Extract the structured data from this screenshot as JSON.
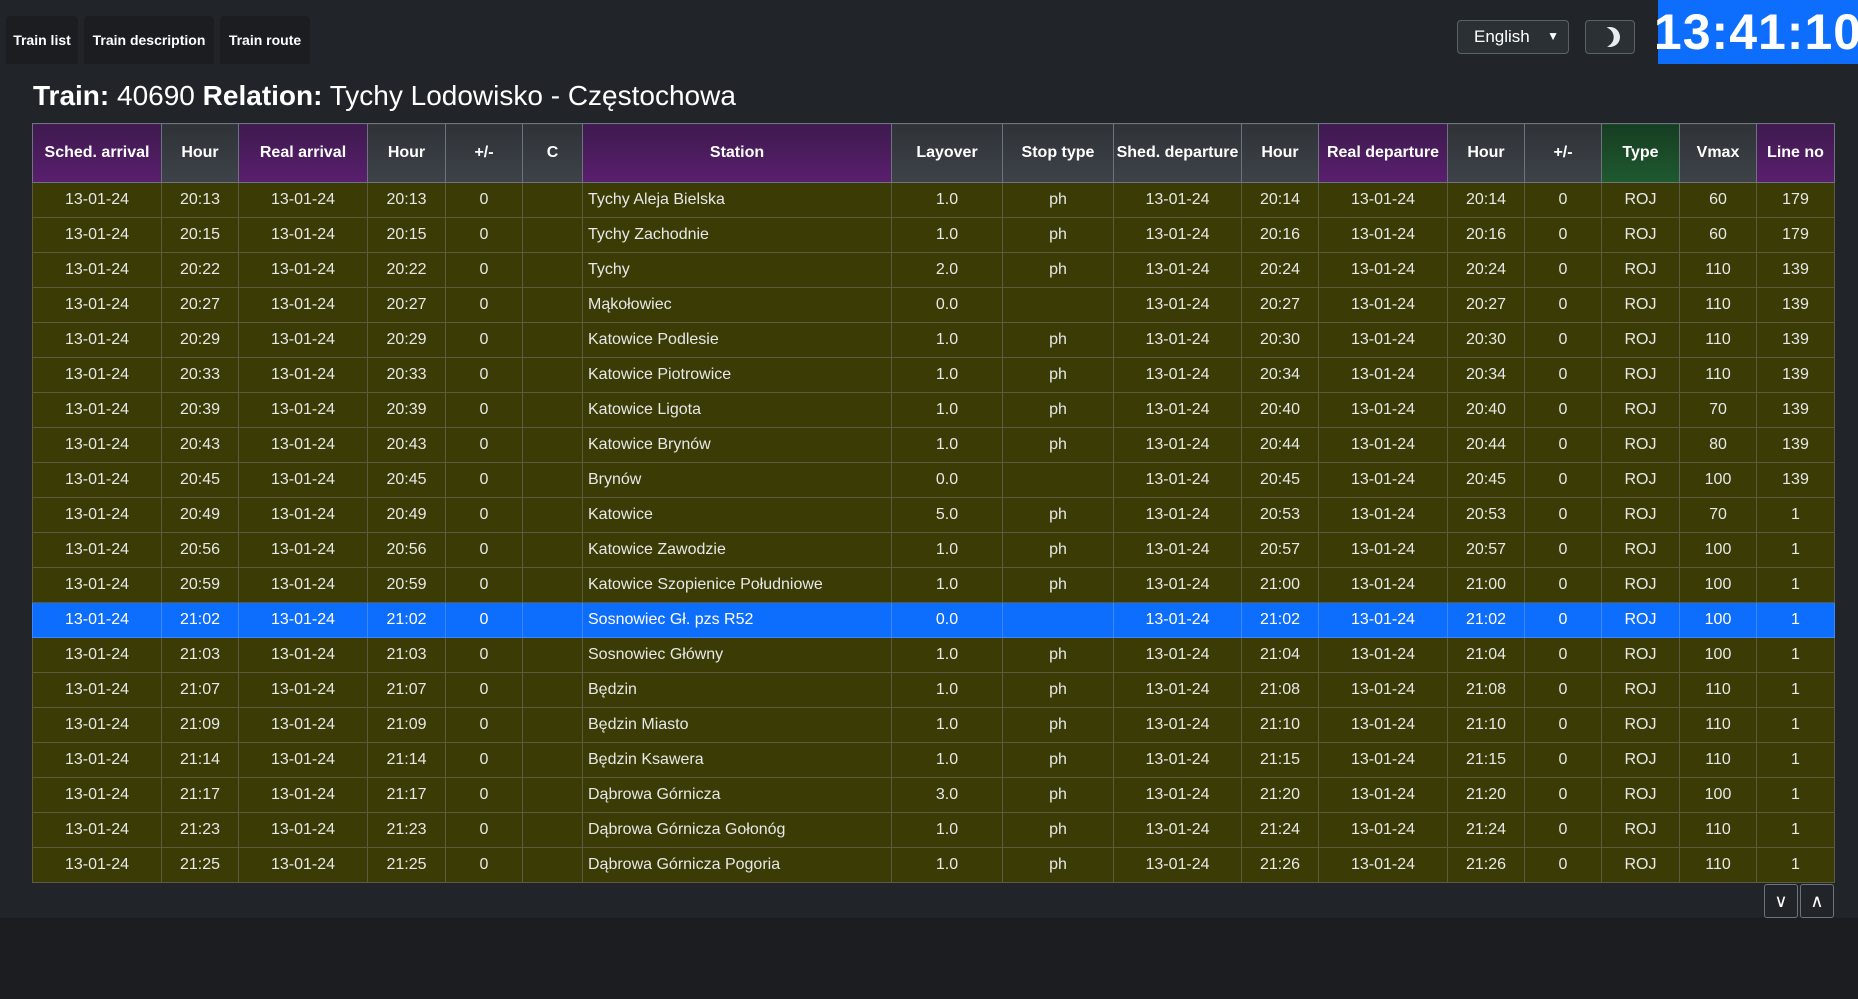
{
  "tabs": [
    "Train list",
    "Train description",
    "Train route"
  ],
  "language": {
    "selected": "English"
  },
  "theme_icon": "moon-icon",
  "clock": "13:41:10",
  "title": {
    "train_label": "Train:",
    "train_no": "40690",
    "relation_label": "Relation:",
    "relation": "Tychy Lodowisko - Częstochowa"
  },
  "columns": [
    "Sched. arrival",
    "Hour",
    "Real arrival",
    "Hour",
    "+/-",
    "C",
    "Station",
    "Layover",
    "Stop type",
    "Shed. departure",
    "Hour",
    "Real departure",
    "Hour",
    "+/-",
    "Type",
    "Vmax",
    "Line no"
  ],
  "rows": [
    [
      "13-01-24",
      "20:13",
      "13-01-24",
      "20:13",
      "0",
      "",
      "Tychy Aleja Bielska",
      "1.0",
      "ph",
      "13-01-24",
      "20:14",
      "13-01-24",
      "20:14",
      "0",
      "ROJ",
      "60",
      "179"
    ],
    [
      "13-01-24",
      "20:15",
      "13-01-24",
      "20:15",
      "0",
      "",
      "Tychy Zachodnie",
      "1.0",
      "ph",
      "13-01-24",
      "20:16",
      "13-01-24",
      "20:16",
      "0",
      "ROJ",
      "60",
      "179"
    ],
    [
      "13-01-24",
      "20:22",
      "13-01-24",
      "20:22",
      "0",
      "",
      "Tychy",
      "2.0",
      "ph",
      "13-01-24",
      "20:24",
      "13-01-24",
      "20:24",
      "0",
      "ROJ",
      "110",
      "139"
    ],
    [
      "13-01-24",
      "20:27",
      "13-01-24",
      "20:27",
      "0",
      "",
      "Mąkołowiec",
      "0.0",
      "",
      "13-01-24",
      "20:27",
      "13-01-24",
      "20:27",
      "0",
      "ROJ",
      "110",
      "139"
    ],
    [
      "13-01-24",
      "20:29",
      "13-01-24",
      "20:29",
      "0",
      "",
      "Katowice Podlesie",
      "1.0",
      "ph",
      "13-01-24",
      "20:30",
      "13-01-24",
      "20:30",
      "0",
      "ROJ",
      "110",
      "139"
    ],
    [
      "13-01-24",
      "20:33",
      "13-01-24",
      "20:33",
      "0",
      "",
      "Katowice Piotrowice",
      "1.0",
      "ph",
      "13-01-24",
      "20:34",
      "13-01-24",
      "20:34",
      "0",
      "ROJ",
      "110",
      "139"
    ],
    [
      "13-01-24",
      "20:39",
      "13-01-24",
      "20:39",
      "0",
      "",
      "Katowice Ligota",
      "1.0",
      "ph",
      "13-01-24",
      "20:40",
      "13-01-24",
      "20:40",
      "0",
      "ROJ",
      "70",
      "139"
    ],
    [
      "13-01-24",
      "20:43",
      "13-01-24",
      "20:43",
      "0",
      "",
      "Katowice Brynów",
      "1.0",
      "ph",
      "13-01-24",
      "20:44",
      "13-01-24",
      "20:44",
      "0",
      "ROJ",
      "80",
      "139"
    ],
    [
      "13-01-24",
      "20:45",
      "13-01-24",
      "20:45",
      "0",
      "",
      "Brynów",
      "0.0",
      "",
      "13-01-24",
      "20:45",
      "13-01-24",
      "20:45",
      "0",
      "ROJ",
      "100",
      "139"
    ],
    [
      "13-01-24",
      "20:49",
      "13-01-24",
      "20:49",
      "0",
      "",
      "Katowice",
      "5.0",
      "ph",
      "13-01-24",
      "20:53",
      "13-01-24",
      "20:53",
      "0",
      "ROJ",
      "70",
      "1"
    ],
    [
      "13-01-24",
      "20:56",
      "13-01-24",
      "20:56",
      "0",
      "",
      "Katowice Zawodzie",
      "1.0",
      "ph",
      "13-01-24",
      "20:57",
      "13-01-24",
      "20:57",
      "0",
      "ROJ",
      "100",
      "1"
    ],
    [
      "13-01-24",
      "20:59",
      "13-01-24",
      "20:59",
      "0",
      "",
      "Katowice Szopienice Południowe",
      "1.0",
      "ph",
      "13-01-24",
      "21:00",
      "13-01-24",
      "21:00",
      "0",
      "ROJ",
      "100",
      "1"
    ],
    [
      "13-01-24",
      "21:02",
      "13-01-24",
      "21:02",
      "0",
      "",
      "Sosnowiec Gł. pzs R52",
      "0.0",
      "",
      "13-01-24",
      "21:02",
      "13-01-24",
      "21:02",
      "0",
      "ROJ",
      "100",
      "1"
    ],
    [
      "13-01-24",
      "21:03",
      "13-01-24",
      "21:03",
      "0",
      "",
      "Sosnowiec Główny",
      "1.0",
      "ph",
      "13-01-24",
      "21:04",
      "13-01-24",
      "21:04",
      "0",
      "ROJ",
      "100",
      "1"
    ],
    [
      "13-01-24",
      "21:07",
      "13-01-24",
      "21:07",
      "0",
      "",
      "Będzin",
      "1.0",
      "ph",
      "13-01-24",
      "21:08",
      "13-01-24",
      "21:08",
      "0",
      "ROJ",
      "110",
      "1"
    ],
    [
      "13-01-24",
      "21:09",
      "13-01-24",
      "21:09",
      "0",
      "",
      "Będzin Miasto",
      "1.0",
      "ph",
      "13-01-24",
      "21:10",
      "13-01-24",
      "21:10",
      "0",
      "ROJ",
      "110",
      "1"
    ],
    [
      "13-01-24",
      "21:14",
      "13-01-24",
      "21:14",
      "0",
      "",
      "Będzin Ksawera",
      "1.0",
      "ph",
      "13-01-24",
      "21:15",
      "13-01-24",
      "21:15",
      "0",
      "ROJ",
      "110",
      "1"
    ],
    [
      "13-01-24",
      "21:17",
      "13-01-24",
      "21:17",
      "0",
      "",
      "Dąbrowa Górnicza",
      "3.0",
      "ph",
      "13-01-24",
      "21:20",
      "13-01-24",
      "21:20",
      "0",
      "ROJ",
      "100",
      "1"
    ],
    [
      "13-01-24",
      "21:23",
      "13-01-24",
      "21:23",
      "0",
      "",
      "Dąbrowa Górnicza Gołonóg",
      "1.0",
      "ph",
      "13-01-24",
      "21:24",
      "13-01-24",
      "21:24",
      "0",
      "ROJ",
      "110",
      "1"
    ],
    [
      "13-01-24",
      "21:25",
      "13-01-24",
      "21:25",
      "0",
      "",
      "Dąbrowa Górnicza Pogoria",
      "1.0",
      "ph",
      "13-01-24",
      "21:26",
      "13-01-24",
      "21:26",
      "0",
      "ROJ",
      "110",
      "1"
    ]
  ],
  "selected_row": 12,
  "nav": {
    "down": "∨",
    "up": "∧"
  },
  "colors": {
    "row_bg": "#3b3b06",
    "selected_bg": "#0d6efd",
    "clock_bg": "#0d6efd"
  }
}
